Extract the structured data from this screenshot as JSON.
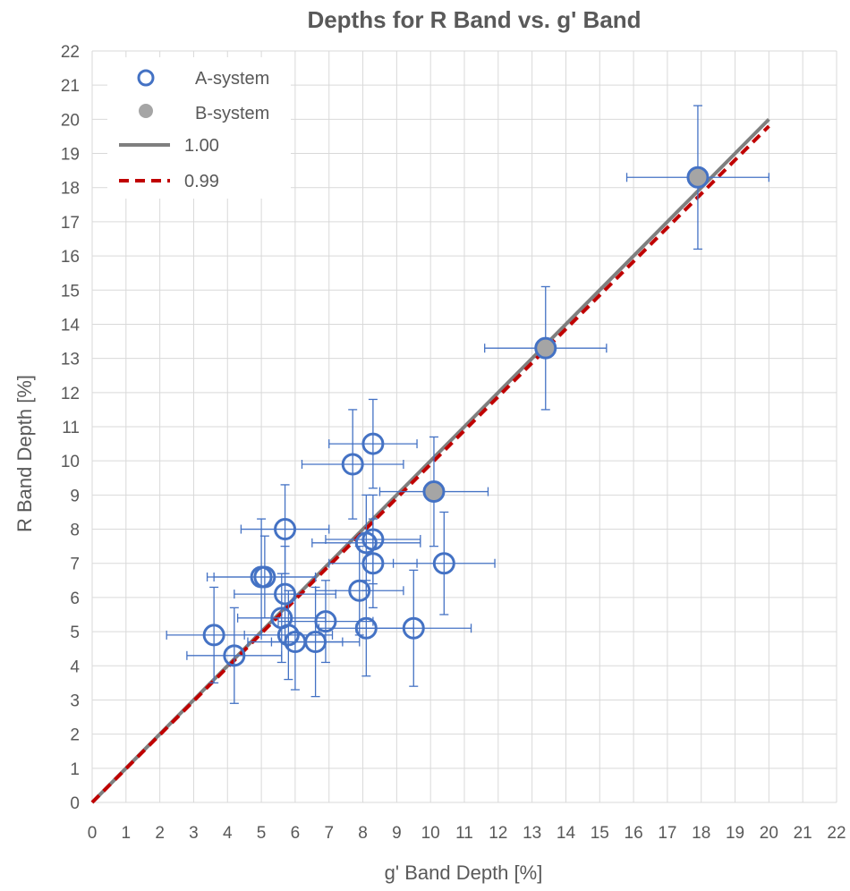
{
  "chart_data": {
    "type": "scatter",
    "title": "Depths for R Band vs. g' Band",
    "xlabel": "g' Band Depth [%]",
    "ylabel": "R Band Depth [%]",
    "xlim": [
      0,
      22
    ],
    "ylim": [
      0,
      22
    ],
    "xticks": [
      "0",
      "1",
      "2",
      "3",
      "4",
      "5",
      "6",
      "7",
      "8",
      "9",
      "10",
      "11",
      "12",
      "13",
      "14",
      "15",
      "16",
      "17",
      "18",
      "19",
      "20",
      "21",
      "22"
    ],
    "yticks": [
      "0",
      "1",
      "2",
      "3",
      "4",
      "5",
      "6",
      "7",
      "8",
      "9",
      "10",
      "11",
      "12",
      "13",
      "14",
      "15",
      "16",
      "17",
      "18",
      "19",
      "20",
      "21",
      "22"
    ],
    "grid": true,
    "legend_position": "top-left",
    "colors": {
      "a_system": "#4472c4",
      "b_system": "#a5a5a5",
      "line_100": "#7f7f7f",
      "line_099": "#c00000",
      "grid": "#d9d9d9",
      "text": "#595959"
    },
    "series": [
      {
        "name": "A-system",
        "marker": "open-circle",
        "points": [
          {
            "x": 3.6,
            "y": 4.9,
            "xerr": 1.4,
            "yerr": 1.4
          },
          {
            "x": 4.2,
            "y": 4.3,
            "xerr": 1.4,
            "yerr": 1.4
          },
          {
            "x": 5.0,
            "y": 6.6,
            "xerr": 1.6,
            "yerr": 1.7
          },
          {
            "x": 5.1,
            "y": 6.6,
            "xerr": 1.5,
            "yerr": 1.2
          },
          {
            "x": 5.6,
            "y": 5.4,
            "xerr": 1.3,
            "yerr": 1.3
          },
          {
            "x": 5.7,
            "y": 6.1,
            "xerr": 1.5,
            "yerr": 1.4
          },
          {
            "x": 5.7,
            "y": 8.0,
            "xerr": 1.3,
            "yerr": 1.3
          },
          {
            "x": 5.8,
            "y": 4.9,
            "xerr": 1.3,
            "yerr": 1.3
          },
          {
            "x": 6.0,
            "y": 4.7,
            "xerr": 1.4,
            "yerr": 1.4
          },
          {
            "x": 6.6,
            "y": 4.7,
            "xerr": 1.3,
            "yerr": 1.6
          },
          {
            "x": 6.9,
            "y": 5.3,
            "xerr": 1.4,
            "yerr": 1.2
          },
          {
            "x": 7.7,
            "y": 9.9,
            "xerr": 1.5,
            "yerr": 1.6
          },
          {
            "x": 7.9,
            "y": 6.2,
            "xerr": 1.3,
            "yerr": 1.3
          },
          {
            "x": 8.1,
            "y": 7.6,
            "xerr": 1.6,
            "yerr": 1.4
          },
          {
            "x": 8.1,
            "y": 5.1,
            "xerr": 1.4,
            "yerr": 1.4
          },
          {
            "x": 8.3,
            "y": 7.7,
            "xerr": 1.4,
            "yerr": 1.3
          },
          {
            "x": 8.3,
            "y": 7.0,
            "xerr": 1.3,
            "yerr": 1.3
          },
          {
            "x": 8.3,
            "y": 10.5,
            "xerr": 1.3,
            "yerr": 1.3
          },
          {
            "x": 9.5,
            "y": 5.1,
            "xerr": 1.7,
            "yerr": 1.7
          },
          {
            "x": 10.1,
            "y": 9.1,
            "xerr": 1.6,
            "yerr": 1.6
          },
          {
            "x": 10.4,
            "y": 7.0,
            "xerr": 1.5,
            "yerr": 1.5
          },
          {
            "x": 13.4,
            "y": 13.3,
            "xerr": 1.8,
            "yerr": 1.8
          },
          {
            "x": 17.9,
            "y": 18.3,
            "xerr": 2.1,
            "yerr": 2.1
          }
        ]
      },
      {
        "name": "B-system",
        "marker": "filled-circle",
        "points": [
          {
            "x": 10.1,
            "y": 9.1
          },
          {
            "x": 13.4,
            "y": 13.3
          },
          {
            "x": 17.9,
            "y": 18.3
          }
        ]
      },
      {
        "name": "1.00",
        "marker": "solid-line",
        "slope": 1.0,
        "x_range": [
          0,
          20
        ]
      },
      {
        "name": "0.99",
        "marker": "dashed-line",
        "slope": 0.99,
        "x_range": [
          0,
          20
        ]
      }
    ]
  }
}
